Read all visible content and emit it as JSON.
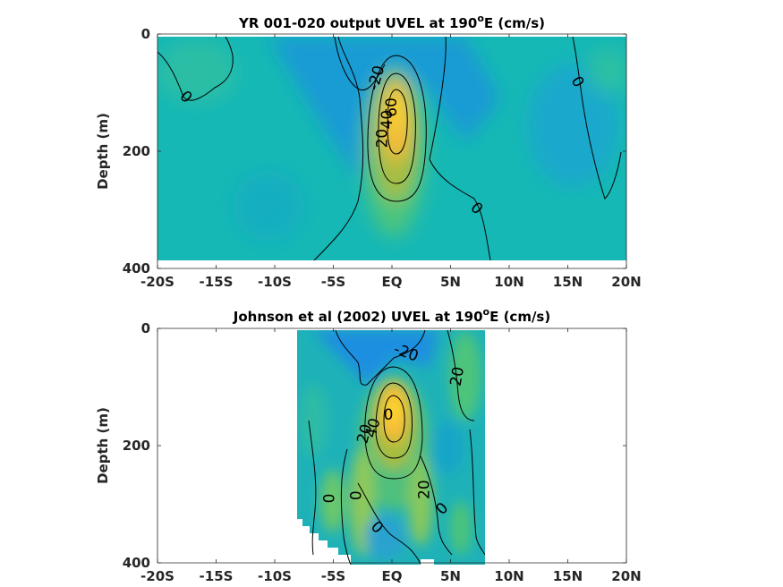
{
  "chart_data": [
    {
      "type": "heatmap",
      "title_prefix": "YR 001-020 output UVEL at 190",
      "title_sup": "o",
      "title_suffix": "E (cm/s)",
      "ylabel": "Depth (m)",
      "xlabel": "",
      "xlim": [
        -20,
        20
      ],
      "ylim": [
        0,
        400
      ],
      "y_reversed": true,
      "xticks": [
        -20,
        -15,
        -10,
        -5,
        0,
        5,
        10,
        15,
        20
      ],
      "xticklabels": [
        "-20S",
        "-15S",
        "-10S",
        "-5S",
        "EQ",
        "5N",
        "10N",
        "15N",
        "20N"
      ],
      "yticks": [
        0,
        200,
        400
      ],
      "yticklabels": [
        "0",
        "200",
        "400"
      ],
      "data_x_range": [
        -20,
        20
      ],
      "data_depth_max": 385,
      "colormap": "parula",
      "contour_labels": [
        {
          "text": "-20",
          "x": -1.3,
          "y": 75,
          "rot": -75
        },
        {
          "text": "0",
          "x": -17.6,
          "y": 108,
          "rot": 45
        },
        {
          "text": "20",
          "x": -0.8,
          "y": 178,
          "rot": -90
        },
        {
          "text": "40",
          "x": -0.4,
          "y": 146,
          "rot": -90
        },
        {
          "text": "60",
          "x": 0.0,
          "y": 125,
          "rot": -90
        },
        {
          "text": "0",
          "x": 7.2,
          "y": 298,
          "rot": 45
        },
        {
          "text": "0",
          "x": 15.8,
          "y": 82,
          "rot": 60
        }
      ]
    },
    {
      "type": "heatmap",
      "title_prefix": "Johnson et al (2002) UVEL at 190",
      "title_sup": "o",
      "title_suffix": "E (cm/s)",
      "ylabel": "Depth (m)",
      "xlabel": "",
      "xlim": [
        -20,
        20
      ],
      "ylim": [
        0,
        400
      ],
      "y_reversed": true,
      "xticks": [
        -20,
        -15,
        -10,
        -5,
        0,
        5,
        10,
        15,
        20
      ],
      "xticklabels": [
        "-20S",
        "-15S",
        "-10S",
        "-5S",
        "EQ",
        "5N",
        "10N",
        "15N",
        "20N"
      ],
      "yticks": [
        0,
        200,
        400
      ],
      "yticklabels": [
        "0",
        "200",
        "400"
      ],
      "data_x_range": [
        -8,
        8
      ],
      "data_depth_max": 400,
      "colormap": "parula",
      "contour_labels": [
        {
          "text": "-20",
          "x": 1.2,
          "y": 42,
          "rot": 20
        },
        {
          "text": "20",
          "x": 5.6,
          "y": 82,
          "rot": -80
        },
        {
          "text": "20",
          "x": -2.3,
          "y": 180,
          "rot": -75
        },
        {
          "text": "40",
          "x": -1.6,
          "y": 170,
          "rot": -75
        },
        {
          "text": "0",
          "x": -0.3,
          "y": 148,
          "rot": 0
        },
        {
          "text": "0",
          "x": -5.3,
          "y": 290,
          "rot": -90
        },
        {
          "text": "0",
          "x": -3.0,
          "y": 285,
          "rot": -90
        },
        {
          "text": "20",
          "x": 2.8,
          "y": 275,
          "rot": -90
        },
        {
          "text": "0",
          "x": 4.3,
          "y": 308,
          "rot": -45
        },
        {
          "text": "0",
          "x": -1.3,
          "y": 340,
          "rot": 45
        }
      ]
    }
  ]
}
